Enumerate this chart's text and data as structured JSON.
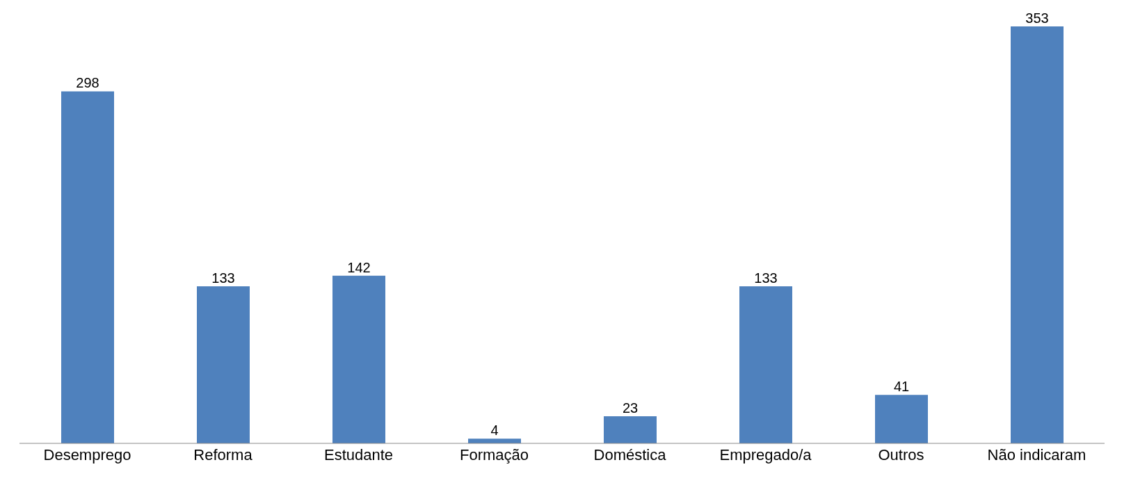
{
  "chart_data": {
    "type": "bar",
    "categories": [
      "Desemprego",
      "Reforma",
      "Estudante",
      "Formação",
      "Doméstica",
      "Empregado/a",
      "Outros",
      "Não indicaram"
    ],
    "values": [
      298,
      133,
      142,
      4,
      23,
      133,
      41,
      353
    ],
    "color": "#4f81bd",
    "data_labels": true
  }
}
